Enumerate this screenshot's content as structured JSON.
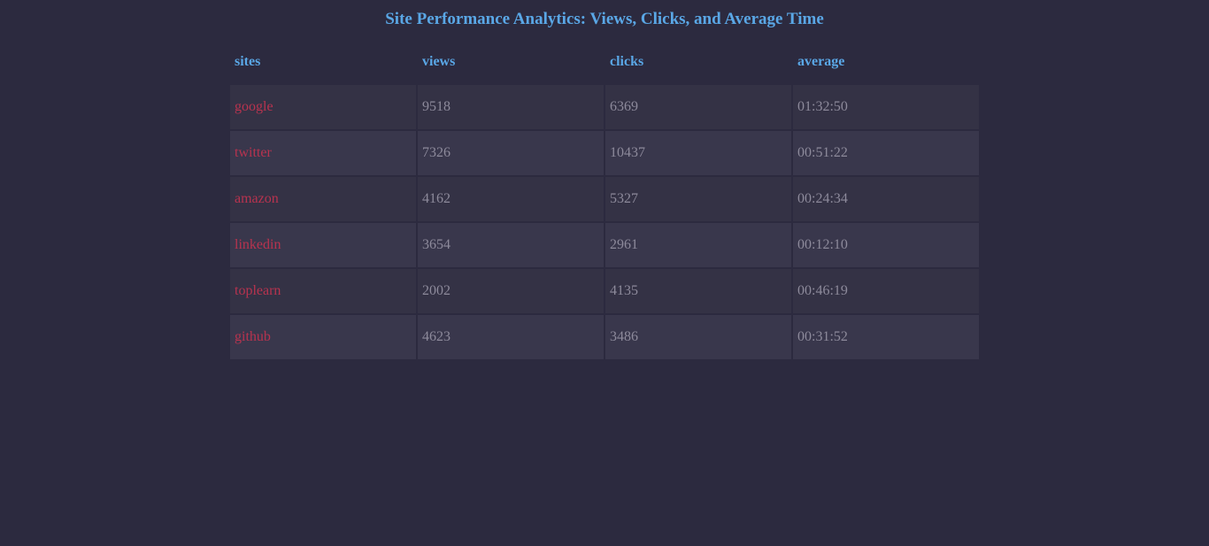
{
  "title": "Site Performance Analytics: Views, Clicks, and Average Time",
  "table": {
    "headers": [
      "sites",
      "views",
      "clicks",
      "average"
    ],
    "rows": [
      {
        "site": "google",
        "views": "9518",
        "clicks": "6369",
        "average": "01:32:50"
      },
      {
        "site": "twitter",
        "views": "7326",
        "clicks": "10437",
        "average": "00:51:22"
      },
      {
        "site": "amazon",
        "views": "4162",
        "clicks": "5327",
        "average": "00:24:34"
      },
      {
        "site": "linkedin",
        "views": "3654",
        "clicks": "2961",
        "average": "00:12:10"
      },
      {
        "site": "toplearn",
        "views": "2002",
        "clicks": "4135",
        "average": "00:46:19"
      },
      {
        "site": "github",
        "views": "4623",
        "clicks": "3486",
        "average": "00:31:52"
      }
    ]
  },
  "colors": {
    "background": "#2c2a3f",
    "heading": "#5aa7e6",
    "site_text": "#b8334f",
    "cell_text": "#8d8a9b",
    "row_odd": "#343245",
    "row_even": "#39374c"
  }
}
